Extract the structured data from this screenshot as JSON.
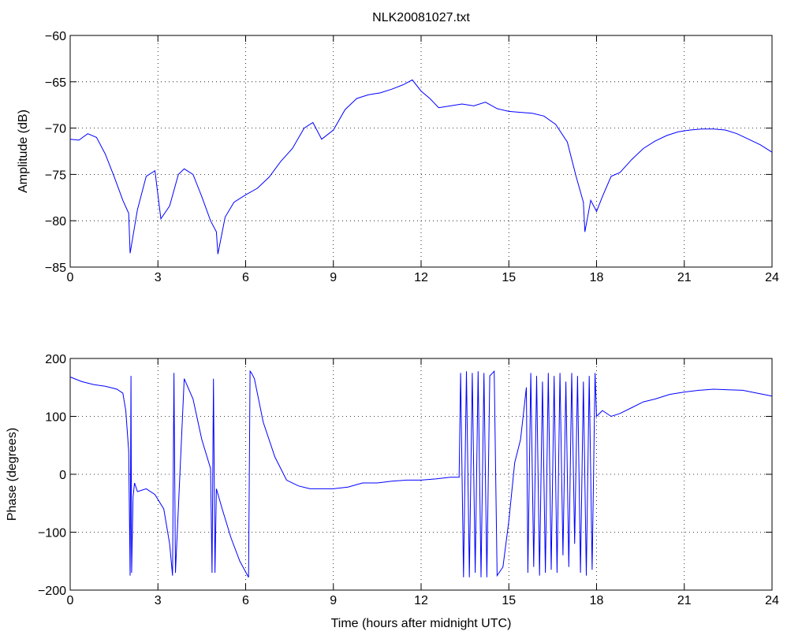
{
  "figure": {
    "title": "NLK20081027.txt"
  },
  "chart_data": [
    {
      "type": "line",
      "title": "NLK20081027.txt",
      "xlabel": "",
      "ylabel": "Amplitude (dB)",
      "xlim": [
        0,
        24
      ],
      "ylim": [
        -85,
        -60
      ],
      "xticks": [
        0,
        3,
        6,
        9,
        12,
        15,
        18,
        21,
        24
      ],
      "yticks": [
        -85,
        -80,
        -75,
        -70,
        -65,
        -60
      ],
      "grid": true,
      "line_color": "#0000ff",
      "series": [
        {
          "x": [
            0,
            0.3,
            0.6,
            0.9,
            1.2,
            1.5,
            1.8,
            2.0,
            2.05,
            2.3,
            2.6,
            2.9,
            3.1,
            3.4,
            3.7,
            3.9,
            4.2,
            4.5,
            4.8,
            5.0,
            5.05,
            5.3,
            5.6,
            6.0,
            6.4,
            6.8,
            7.2,
            7.6,
            8.0,
            8.3,
            8.6,
            9.0,
            9.4,
            9.8,
            10.2,
            10.6,
            11.0,
            11.4,
            11.7,
            12.0,
            12.3,
            12.6,
            13.0,
            13.4,
            13.8,
            14.2,
            14.6,
            15.0,
            15.4,
            15.8,
            16.2,
            16.6,
            17.0,
            17.3,
            17.55,
            17.6,
            17.8,
            18.0,
            18.2,
            18.5,
            18.8,
            19.2,
            19.6,
            20.0,
            20.4,
            20.8,
            21.2,
            21.6,
            22.0,
            22.4,
            22.8,
            23.2,
            23.6,
            24.0
          ],
          "y": [
            -71.2,
            -71.3,
            -70.6,
            -71.0,
            -72.8,
            -75.2,
            -77.8,
            -79.2,
            -83.5,
            -78.8,
            -75.2,
            -74.6,
            -79.8,
            -78.4,
            -75.0,
            -74.4,
            -75.0,
            -77.4,
            -80.0,
            -81.2,
            -83.6,
            -79.6,
            -78.0,
            -77.2,
            -76.5,
            -75.3,
            -73.6,
            -72.2,
            -70.0,
            -69.4,
            -71.2,
            -70.2,
            -68.0,
            -66.8,
            -66.4,
            -66.2,
            -65.8,
            -65.3,
            -64.8,
            -66.0,
            -66.8,
            -67.8,
            -67.6,
            -67.4,
            -67.6,
            -67.2,
            -67.9,
            -68.2,
            -68.3,
            -68.4,
            -68.7,
            -69.6,
            -71.5,
            -75.2,
            -78.0,
            -81.2,
            -77.8,
            -79.0,
            -77.4,
            -75.2,
            -74.8,
            -73.4,
            -72.2,
            -71.4,
            -70.8,
            -70.4,
            -70.2,
            -70.1,
            -70.1,
            -70.2,
            -70.6,
            -71.2,
            -71.8,
            -72.6
          ]
        }
      ]
    },
    {
      "type": "line",
      "title": "",
      "xlabel": "Time (hours after midnight UTC)",
      "ylabel": "Phase (degrees)",
      "xlim": [
        0,
        24
      ],
      "ylim": [
        -200,
        200
      ],
      "xticks": [
        0,
        3,
        6,
        9,
        12,
        15,
        18,
        21,
        24
      ],
      "yticks": [
        -200,
        -100,
        0,
        100,
        200
      ],
      "grid": true,
      "line_color": "#0000ff",
      "series": [
        {
          "x": [
            0,
            0.4,
            0.8,
            1.2,
            1.6,
            1.8,
            1.9,
            2.0,
            2.05,
            2.08,
            2.1,
            2.15,
            2.2,
            2.3,
            2.6,
            2.9,
            3.2,
            3.4,
            3.5,
            3.55,
            3.6,
            3.9,
            4.2,
            4.5,
            4.8,
            4.85,
            4.9,
            4.95,
            5.0,
            5.2,
            5.5,
            5.8,
            6.1,
            6.15,
            6.2,
            6.3,
            6.6,
            7.0,
            7.4,
            7.8,
            8.2,
            8.6,
            9.0,
            9.5,
            10.0,
            10.5,
            11.0,
            11.5,
            12.0,
            12.5,
            13.0,
            13.3,
            13.35,
            13.45,
            13.55,
            13.65,
            13.75,
            13.85,
            13.95,
            14.05,
            14.15,
            14.25,
            14.35,
            14.5,
            14.6,
            14.8,
            15.0,
            15.2,
            15.4,
            15.6,
            15.65,
            15.75,
            15.85,
            15.95,
            16.05,
            16.15,
            16.25,
            16.35,
            16.45,
            16.55,
            16.65,
            16.75,
            16.85,
            16.95,
            17.05,
            17.15,
            17.25,
            17.35,
            17.45,
            17.55,
            17.65,
            17.75,
            17.85,
            17.95,
            18.0,
            18.2,
            18.5,
            18.8,
            19.2,
            19.6,
            20.0,
            20.5,
            21.0,
            21.5,
            22.0,
            22.5,
            23.0,
            23.5,
            24.0
          ],
          "y": [
            168,
            160,
            155,
            152,
            147,
            140,
            110,
            40,
            -175,
            170,
            -170,
            -40,
            -15,
            -30,
            -25,
            -35,
            -60,
            -120,
            -175,
            175,
            -170,
            165,
            130,
            60,
            10,
            -170,
            165,
            -170,
            -25,
            -60,
            -110,
            -150,
            -178,
            178,
            175,
            165,
            90,
            30,
            -10,
            -20,
            -25,
            -25,
            -25,
            -22,
            -15,
            -15,
            -12,
            -10,
            -10,
            -8,
            -5,
            -5,
            175,
            -178,
            178,
            -178,
            175,
            -170,
            178,
            -178,
            175,
            -178,
            170,
            178,
            -175,
            -160,
            -80,
            20,
            60,
            150,
            -170,
            175,
            -160,
            170,
            -175,
            160,
            -170,
            175,
            -165,
            170,
            -170,
            175,
            -140,
            160,
            -160,
            175,
            -120,
            170,
            -170,
            160,
            -175,
            170,
            -165,
            175,
            100,
            110,
            100,
            105,
            115,
            125,
            130,
            138,
            142,
            145,
            147,
            146,
            145,
            140,
            135
          ]
        }
      ]
    }
  ]
}
